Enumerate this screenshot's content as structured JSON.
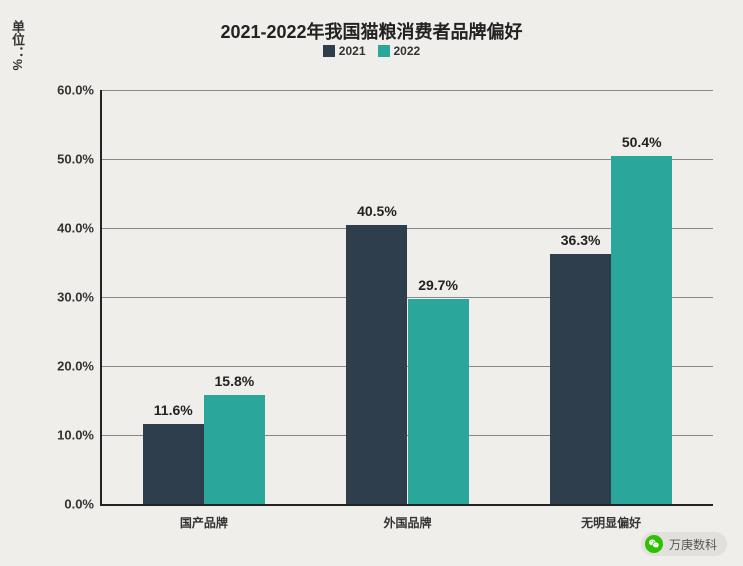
{
  "chart": {
    "type": "bar",
    "title": "2021-2022年我国猫粮消费者品牌偏好",
    "title_fontsize": 18,
    "ylabel": "单位：%",
    "label_fontsize": 13,
    "background_color": "#f0eeea",
    "grid_color": "#888888",
    "axis_color": "#222222",
    "text_color": "#222222",
    "ylim_min": 0,
    "ylim_max": 60,
    "ytick_step": 10,
    "yticks": [
      "0.0%",
      "10.0%",
      "20.0%",
      "30.0%",
      "40.0%",
      "50.0%",
      "60.0%"
    ],
    "categories": [
      "国产品牌",
      "外国品牌",
      "无明显偏好"
    ],
    "series": [
      {
        "name": "2021",
        "color": "#2f3e4d",
        "values": [
          11.6,
          40.5,
          36.3
        ],
        "labels": [
          "11.6%",
          "40.5%",
          "36.3%"
        ]
      },
      {
        "name": "2022",
        "color": "#2aa79a",
        "values": [
          15.8,
          29.7,
          50.4
        ],
        "labels": [
          "15.8%",
          "29.7%",
          "50.4%"
        ]
      }
    ],
    "bar_width_pct": 10,
    "group_gap_pct": 33.33,
    "label_fontweight": 700,
    "label_value_fontsize": 14
  },
  "source": "万庚数科"
}
